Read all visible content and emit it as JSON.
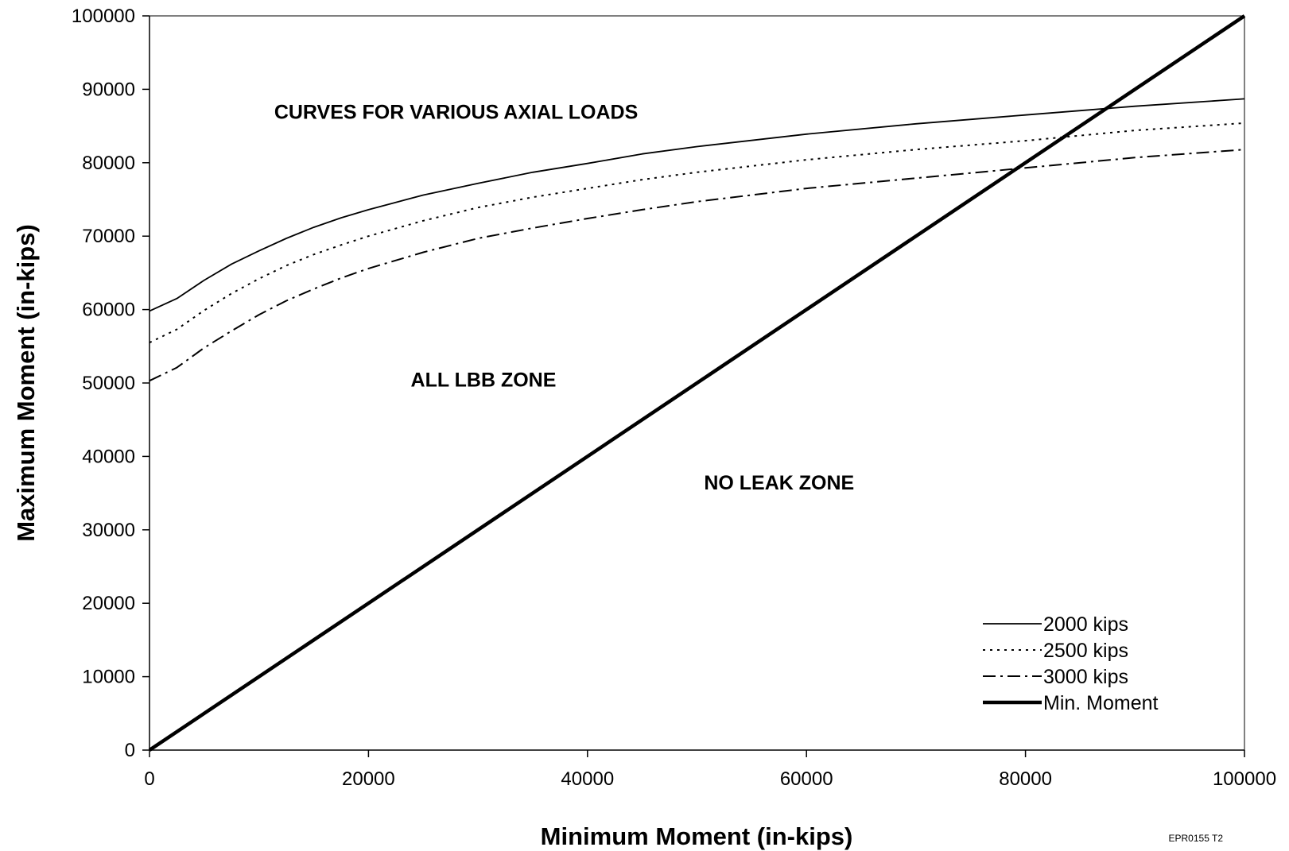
{
  "chart_data": {
    "type": "line",
    "xlabel": "Minimum Moment (in-kips)",
    "ylabel": "Maximum Moment (in-kips)",
    "xlim": [
      0,
      100000
    ],
    "ylim": [
      0,
      100000
    ],
    "x_ticks": [
      "0",
      "20000",
      "40000",
      "60000",
      "80000",
      "100000"
    ],
    "y_ticks": [
      "0",
      "10000",
      "20000",
      "30000",
      "40000",
      "50000",
      "60000",
      "70000",
      "80000",
      "90000",
      "100000"
    ],
    "grid": false,
    "legend_position": "bottom-right",
    "annotations": [
      {
        "text": "CURVES FOR VARIOUS AXIAL LOADS",
        "x": 28000,
        "y": 86000
      },
      {
        "text": "ALL LBB ZONE",
        "x": 30500,
        "y": 49500
      },
      {
        "text": "NO LEAK ZONE",
        "x": 57500,
        "y": 35500
      }
    ],
    "series": [
      {
        "name": "2000 kips",
        "style": "solid",
        "x": [
          0,
          2500,
          5000,
          7500,
          10000,
          12500,
          15000,
          17500,
          20000,
          25000,
          30000,
          35000,
          40000,
          45000,
          50000,
          60000,
          70000,
          80000,
          90000,
          100000
        ],
        "y": [
          59800,
          61500,
          64000,
          66200,
          68000,
          69700,
          71200,
          72500,
          73600,
          75600,
          77200,
          78700,
          79900,
          81200,
          82200,
          83900,
          85300,
          86500,
          87700,
          88700
        ]
      },
      {
        "name": "2500 kips",
        "style": "dotted",
        "x": [
          0,
          2500,
          5000,
          7500,
          10000,
          12500,
          15000,
          17500,
          20000,
          25000,
          30000,
          35000,
          40000,
          45000,
          50000,
          60000,
          70000,
          80000,
          90000,
          100000
        ],
        "y": [
          55500,
          57300,
          59900,
          62200,
          64200,
          66000,
          67500,
          68800,
          70000,
          72100,
          73900,
          75300,
          76500,
          77700,
          78700,
          80400,
          81800,
          83000,
          84400,
          85400
        ]
      },
      {
        "name": "3000 kips",
        "style": "dash-dot",
        "x": [
          0,
          2500,
          5000,
          7500,
          10000,
          12500,
          15000,
          17500,
          20000,
          25000,
          30000,
          35000,
          40000,
          45000,
          50000,
          60000,
          70000,
          80000,
          90000,
          100000
        ],
        "y": [
          50300,
          52100,
          54800,
          57100,
          59300,
          61200,
          62800,
          64300,
          65600,
          67800,
          69700,
          71100,
          72400,
          73600,
          74700,
          76500,
          77900,
          79300,
          80700,
          81800
        ]
      },
      {
        "name": "Min. Moment",
        "style": "bold-solid",
        "x": [
          0,
          100000
        ],
        "y": [
          0,
          100000
        ]
      }
    ],
    "footnote": "EPR0155 T2"
  }
}
